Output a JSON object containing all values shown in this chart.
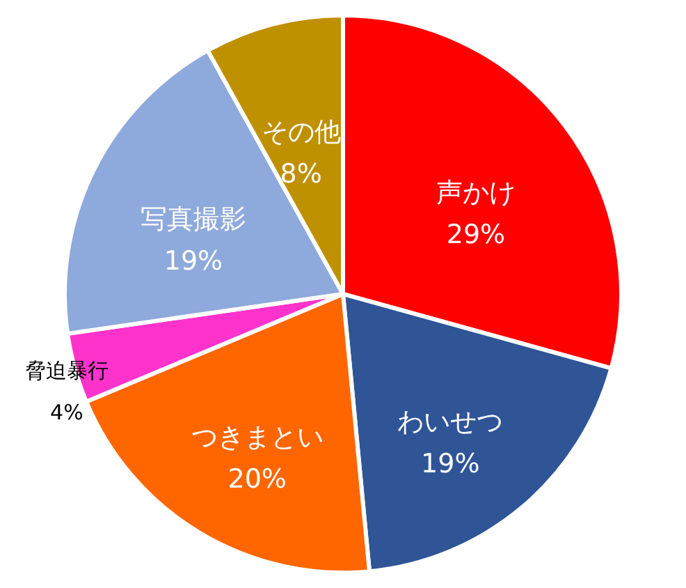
{
  "chart_data": {
    "type": "pie",
    "categories": [
      "声かけ",
      "わいせつ",
      "つきまとい",
      "脅迫暴行",
      "写真撮影",
      "その他"
    ],
    "values": [
      29,
      19,
      20,
      4,
      19,
      8
    ],
    "value_labels": [
      "29%",
      "19%",
      "20%",
      "4%",
      "19%",
      "8%"
    ],
    "colors": [
      "#ff0000",
      "#2f5597",
      "#ff6600",
      "#ff33cc",
      "#8ea9db",
      "#bf9000"
    ]
  }
}
